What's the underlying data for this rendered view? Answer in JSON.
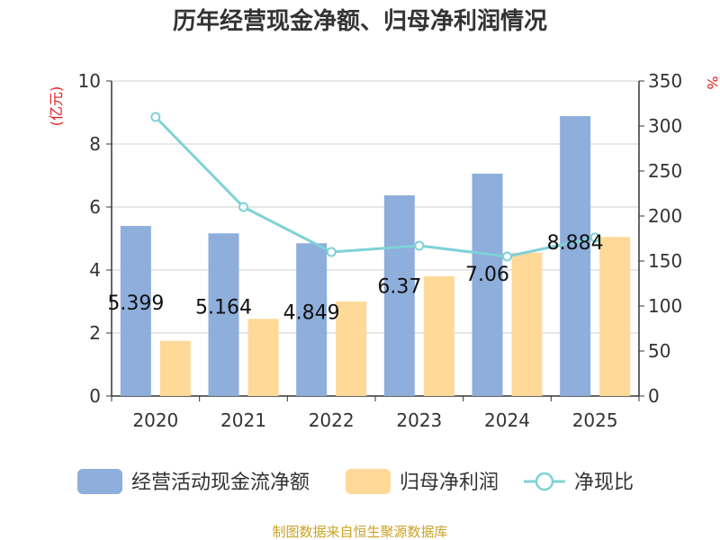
{
  "chart_data": {
    "type": "bar",
    "title": "历年经营现金净额、归母净利润情况",
    "categories": [
      "2020",
      "2021",
      "2022",
      "2023",
      "2024",
      "2025"
    ],
    "series": [
      {
        "name": "经营活动现金流净额",
        "type": "bar",
        "axis": "left",
        "color": "#8eaedb",
        "values": [
          5.399,
          5.164,
          4.849,
          6.37,
          7.06,
          8.884
        ],
        "labels": [
          "5.399",
          "5.164",
          "4.849",
          "6.37",
          "7.06",
          "8.884"
        ]
      },
      {
        "name": "归母净利润",
        "type": "bar",
        "axis": "left",
        "color": "#ffd998",
        "values": [
          1.75,
          2.45,
          3.0,
          3.8,
          4.55,
          5.05
        ]
      },
      {
        "name": "净现比",
        "type": "line",
        "axis": "right",
        "color": "#7fd1d6",
        "values": [
          310,
          210,
          160,
          167,
          155,
          176
        ]
      }
    ],
    "ylabel_left": "(亿元)",
    "ylabel_right": "%",
    "ylim_left": [
      0,
      10
    ],
    "yticks_left": [
      "0",
      "2",
      "4",
      "6",
      "8",
      "10"
    ],
    "ylim_right": [
      0,
      350
    ],
    "yticks_right": [
      "0",
      "50",
      "100",
      "150",
      "200",
      "250",
      "300",
      "350"
    ],
    "legend_position": "bottom",
    "grid": true
  },
  "source_note": "制图数据来自恒生聚源数据库"
}
